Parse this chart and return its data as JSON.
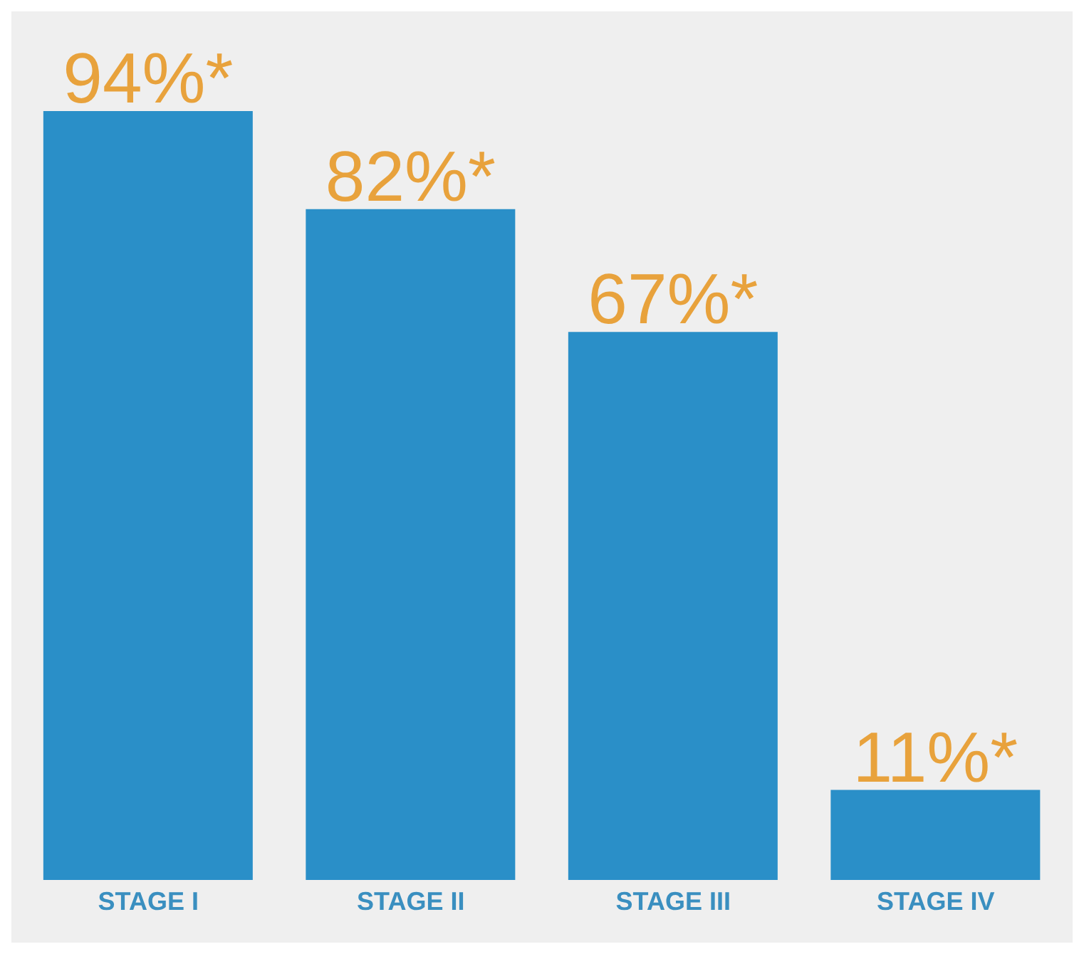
{
  "chart_data": {
    "type": "bar",
    "categories": [
      "STAGE I",
      "STAGE II",
      "STAGE III",
      "STAGE IV"
    ],
    "values": [
      94,
      82,
      67,
      11
    ],
    "value_labels": [
      "94%*",
      "82%*",
      "67%*",
      "11%*"
    ],
    "color": "#2a8fc8"
  }
}
